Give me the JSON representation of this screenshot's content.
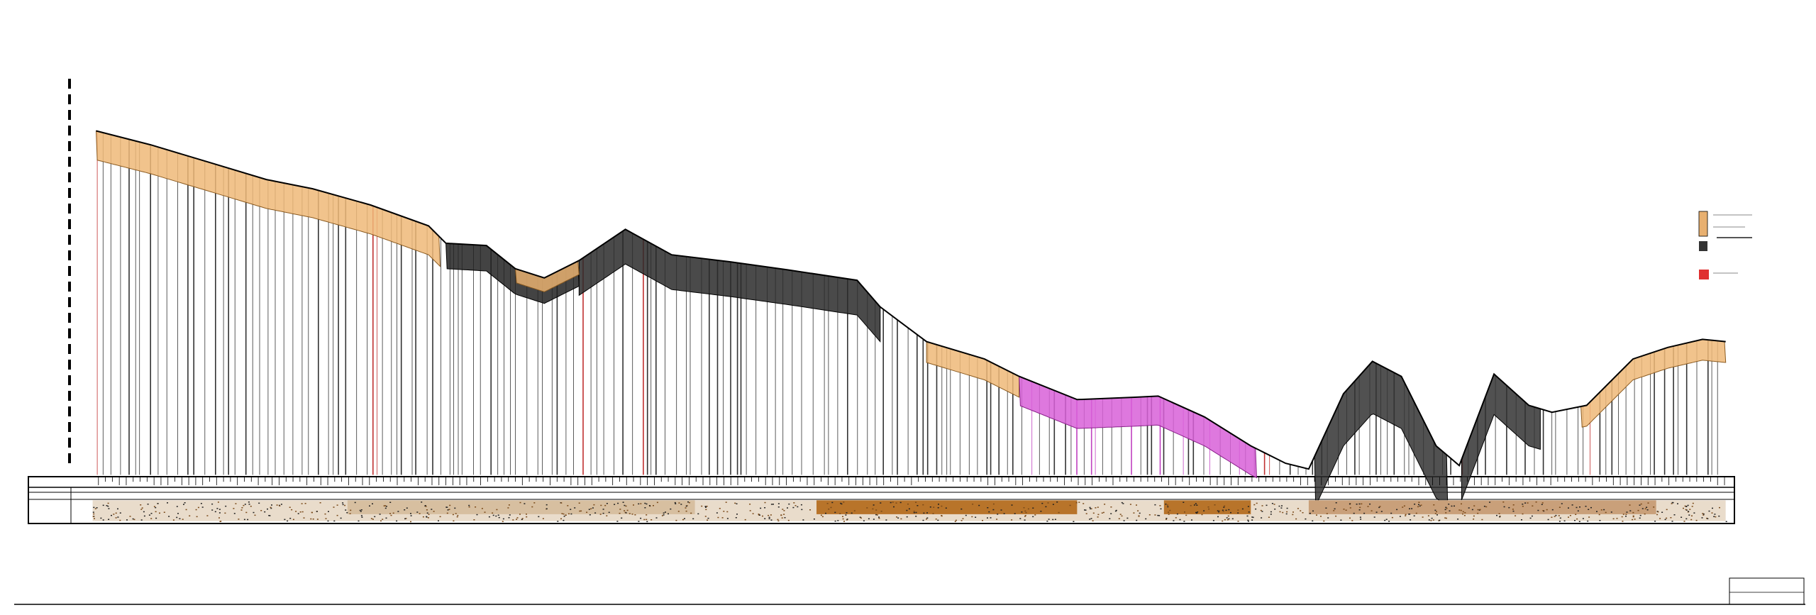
{
  "drawing": {}
}
